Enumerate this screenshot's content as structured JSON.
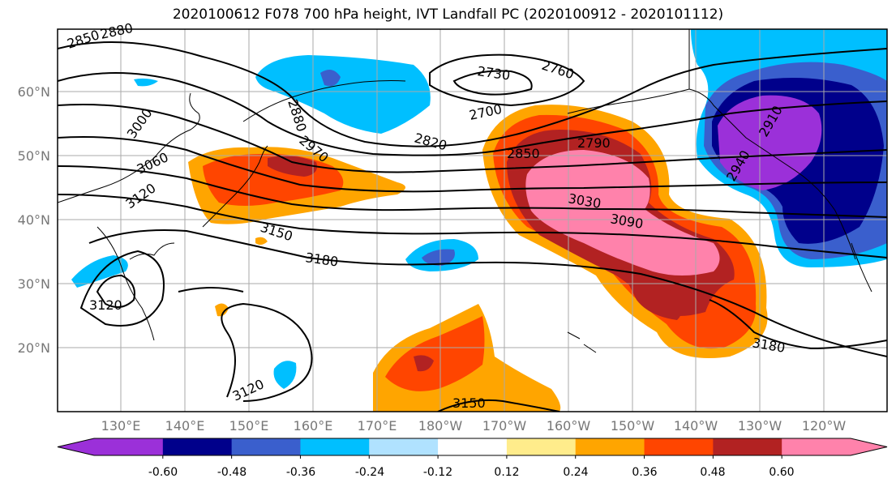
{
  "title": "2020100612 F078 700 hPa height, IVT Landfall PC (2020100912 - 2020101112)",
  "lat_labels": [
    "60°N",
    "50°N",
    "40°N",
    "30°N",
    "20°N"
  ],
  "lon_labels": [
    "130°E",
    "140°E",
    "150°E",
    "160°E",
    "170°E",
    "180°W",
    "170°W",
    "160°W",
    "150°W",
    "140°W",
    "130°W",
    "120°W"
  ],
  "colorbar": {
    "colors": [
      "#9b30d9",
      "#00008b",
      "#3a5fcd",
      "#00bfff",
      "#b0e2ff",
      "#ffffff",
      "#ffec8b",
      "#ffa500",
      "#ff4500",
      "#b22222",
      "#ff82ab"
    ],
    "tick_labels": [
      "-0.60",
      "-0.48",
      "-0.36",
      "-0.24",
      "-0.12",
      "0.12",
      "0.24",
      "0.36",
      "0.48",
      "0.60"
    ]
  },
  "contour_labels": [
    "2850",
    "2880",
    "2730",
    "2760",
    "2700",
    "2820",
    "2880",
    "2970",
    "2850",
    "2790",
    "3000",
    "3060",
    "3120",
    "3150",
    "3180",
    "3030",
    "3090",
    "3120",
    "3120",
    "3150",
    "3180",
    "2910",
    "2940"
  ]
}
